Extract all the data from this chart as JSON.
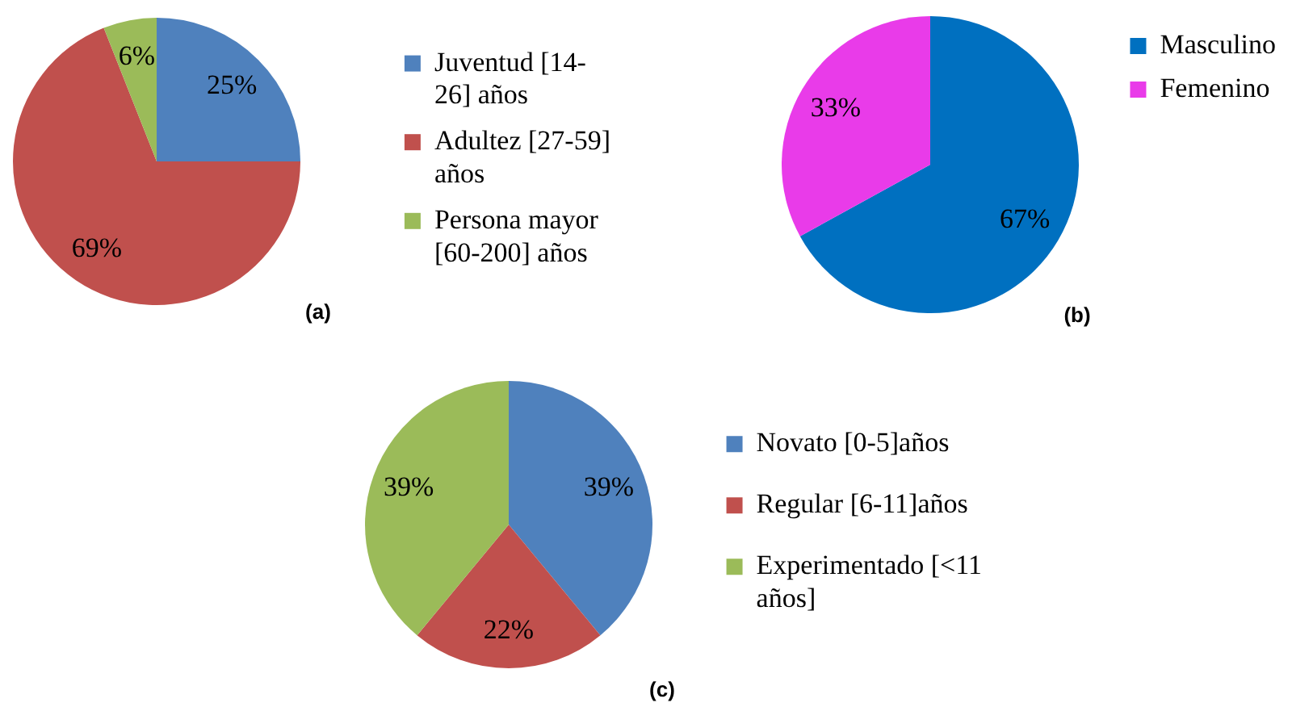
{
  "chart_data": [
    {
      "type": "pie",
      "categories": [
        "Juventud [14-26] años",
        "Adultez [27-59] años",
        "Persona mayor [60-200] años"
      ],
      "values": [
        25,
        69,
        6
      ],
      "colors": [
        "#4f81bd",
        "#c0504d",
        "#9bbb59"
      ],
      "value_labels": [
        "25%",
        "69%",
        "6%"
      ],
      "legend": "right",
      "annotations": [
        "(a)"
      ]
    },
    {
      "type": "pie",
      "categories": [
        "Masculino",
        "Femenino"
      ],
      "values": [
        67,
        33
      ],
      "colors": [
        "#0070c0",
        "#e93be9"
      ],
      "value_labels": [
        "67%",
        "33%"
      ],
      "legend": "top right",
      "annotations": [
        "(b)"
      ]
    },
    {
      "type": "pie",
      "categories": [
        "Novato [0-5]años",
        "Regular [6-11]años",
        "Experimentado [<11 años]"
      ],
      "values": [
        39,
        22,
        39
      ],
      "colors": [
        "#4f81bd",
        "#c0504d",
        "#9bbb59"
      ],
      "value_labels": [
        "39%",
        "22%",
        "39%"
      ],
      "legend": "right",
      "annotations": [
        "(c)"
      ]
    }
  ]
}
